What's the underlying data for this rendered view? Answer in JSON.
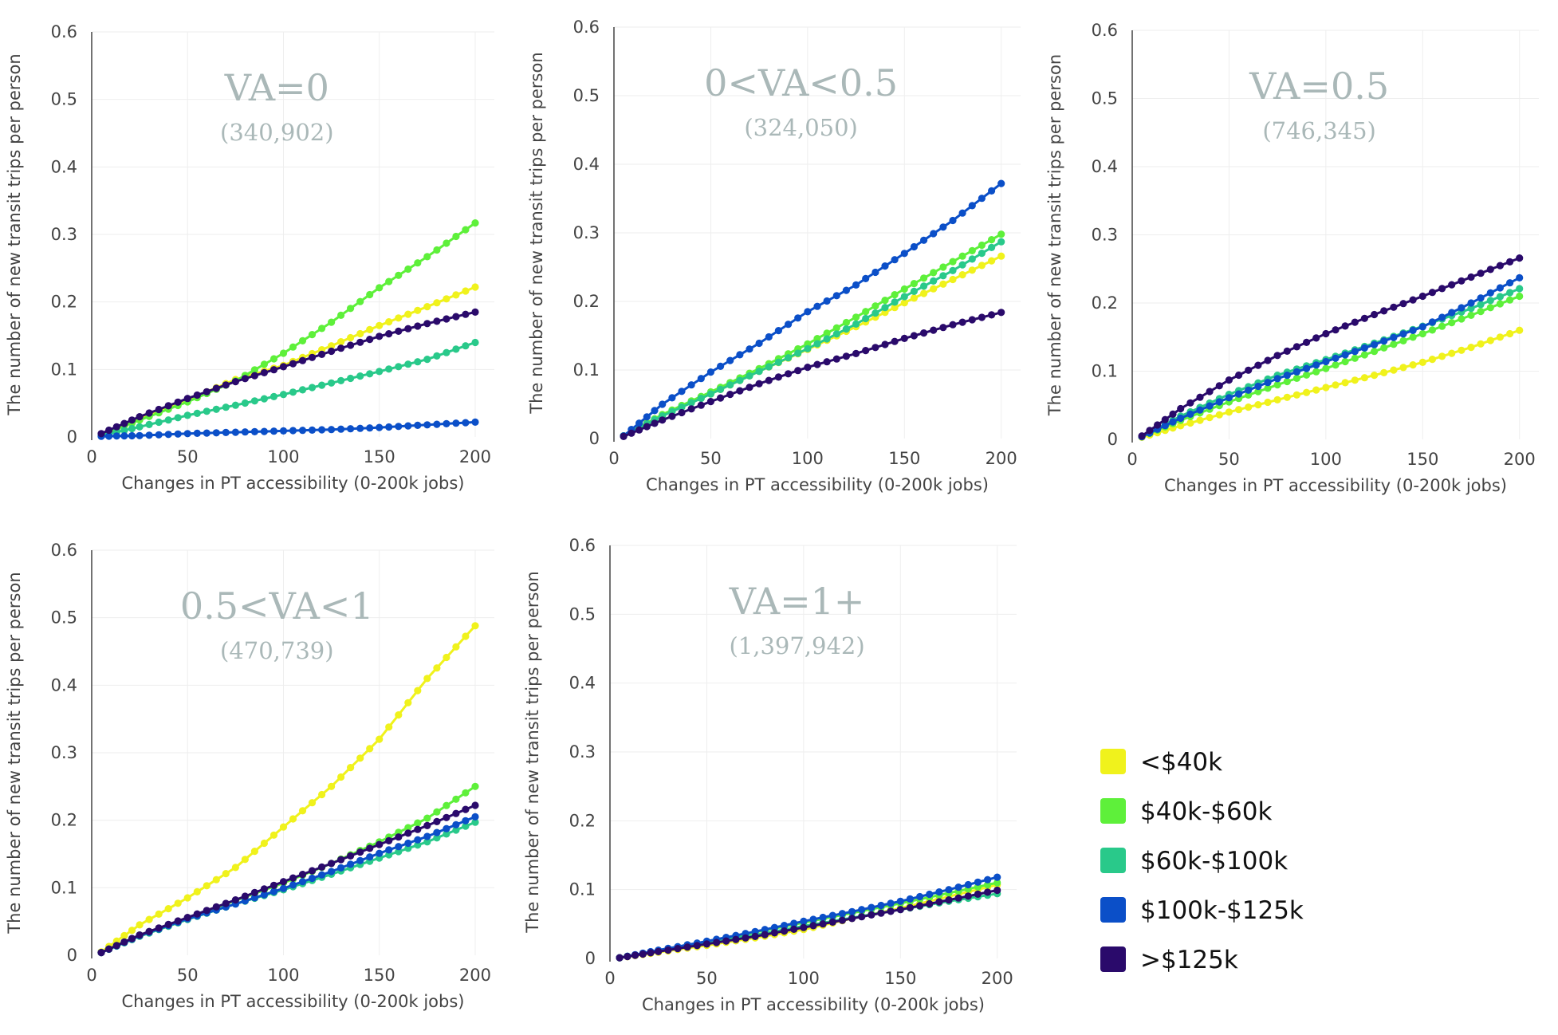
{
  "chart_data": [
    {
      "type": "line",
      "title": "VA=0",
      "subtitle": "(340,902)",
      "xlabel": "Changes in PT accessibility (0-200k jobs)",
      "ylabel": "The number of new transit trips per person",
      "xlim": [
        0,
        210
      ],
      "ylim": [
        0,
        0.6
      ],
      "xticks": [
        "0",
        "50",
        "100",
        "150",
        "200"
      ],
      "yticks": [
        "0",
        "0.1",
        "0.2",
        "0.3",
        "0.4",
        "0.5",
        "0.6"
      ],
      "x": [
        5,
        25,
        50,
        75,
        100,
        125,
        150,
        175,
        200
      ],
      "series": [
        {
          "name": "<$40k",
          "values": [
            0.003,
            0.028,
            0.055,
            0.085,
            0.106,
            0.135,
            0.165,
            0.193,
            0.222
          ]
        },
        {
          "name": "$40k-$60k",
          "values": [
            0.003,
            0.025,
            0.052,
            0.083,
            0.124,
            0.17,
            0.221,
            0.267,
            0.317
          ]
        },
        {
          "name": "$60k-$100k",
          "values": [
            0.002,
            0.015,
            0.032,
            0.047,
            0.063,
            0.08,
            0.097,
            0.115,
            0.14
          ]
        },
        {
          "name": "$100k-$125k",
          "values": [
            0.001,
            0.002,
            0.005,
            0.007,
            0.009,
            0.011,
            0.014,
            0.018,
            0.022
          ]
        },
        {
          "name": ">$125k",
          "values": [
            0.005,
            0.03,
            0.057,
            0.082,
            0.104,
            0.127,
            0.149,
            0.168,
            0.185
          ]
        }
      ]
    },
    {
      "type": "line",
      "title": "0<VA<0.5",
      "subtitle": "(324,050)",
      "xlabel": "Changes in PT accessibility (0-200k jobs)",
      "ylabel": "The number of new transit trips per person",
      "xlim": [
        0,
        210
      ],
      "ylim": [
        0,
        0.6
      ],
      "xticks": [
        "0",
        "50",
        "100",
        "150",
        "200"
      ],
      "yticks": [
        "0",
        "0.1",
        "0.2",
        "0.3",
        "0.4",
        "0.5",
        "0.6"
      ],
      "x": [
        5,
        25,
        50,
        75,
        100,
        125,
        150,
        175,
        200
      ],
      "series": [
        {
          "name": "<$40k",
          "values": [
            0.004,
            0.034,
            0.065,
            0.098,
            0.13,
            0.163,
            0.198,
            0.232,
            0.266
          ]
        },
        {
          "name": "$40k-$60k",
          "values": [
            0.004,
            0.035,
            0.068,
            0.102,
            0.138,
            0.177,
            0.218,
            0.258,
            0.298
          ]
        },
        {
          "name": "$60k-$100k",
          "values": [
            0.004,
            0.033,
            0.065,
            0.098,
            0.131,
            0.167,
            0.207,
            0.245,
            0.287
          ]
        },
        {
          "name": "$100k-$125k",
          "values": [
            0.004,
            0.05,
            0.097,
            0.139,
            0.185,
            0.224,
            0.27,
            0.318,
            0.372
          ]
        },
        {
          "name": ">$125k",
          "values": [
            0.003,
            0.027,
            0.054,
            0.08,
            0.104,
            0.124,
            0.146,
            0.166,
            0.184
          ]
        }
      ]
    },
    {
      "type": "line",
      "title": "VA=0.5",
      "subtitle": "(746,345)",
      "xlabel": "Changes in PT accessibility (0-200k jobs)",
      "ylabel": "The number of new transit trips per person",
      "xlim": [
        0,
        210
      ],
      "ylim": [
        0,
        0.6
      ],
      "xticks": [
        "0",
        "50",
        "100",
        "150",
        "200"
      ],
      "yticks": [
        "0",
        "0.1",
        "0.2",
        "0.3",
        "0.4",
        "0.5",
        "0.6"
      ],
      "x": [
        5,
        25,
        50,
        75,
        100,
        125,
        150,
        175,
        200
      ],
      "series": [
        {
          "name": "<$40k",
          "values": [
            0.003,
            0.02,
            0.04,
            0.058,
            0.076,
            0.094,
            0.113,
            0.135,
            0.16
          ]
        },
        {
          "name": "$40k-$60k",
          "values": [
            0.004,
            0.028,
            0.055,
            0.08,
            0.104,
            0.129,
            0.155,
            0.182,
            0.21
          ]
        },
        {
          "name": "$60k-$100k",
          "values": [
            0.004,
            0.034,
            0.066,
            0.094,
            0.117,
            0.141,
            0.166,
            0.192,
            0.221
          ]
        },
        {
          "name": "$100k-$125k",
          "values": [
            0.004,
            0.031,
            0.061,
            0.089,
            0.114,
            0.139,
            0.165,
            0.2,
            0.237
          ]
        },
        {
          "name": ">$125k",
          "values": [
            0.005,
            0.045,
            0.087,
            0.123,
            0.155,
            0.183,
            0.21,
            0.238,
            0.266
          ]
        }
      ]
    },
    {
      "type": "line",
      "title": "0.5<VA<1",
      "subtitle": "(470,739)",
      "xlabel": "Changes in PT accessibility (0-200k jobs)",
      "ylabel": "The number of new transit trips per person",
      "xlim": [
        0,
        210
      ],
      "ylim": [
        0,
        0.6
      ],
      "xticks": [
        "0",
        "50",
        "100",
        "150",
        "200"
      ],
      "yticks": [
        "0",
        "0.1",
        "0.2",
        "0.3",
        "0.4",
        "0.5",
        "0.6"
      ],
      "x": [
        5,
        25,
        50,
        75,
        100,
        125,
        150,
        175,
        200
      ],
      "series": [
        {
          "name": "<$40k",
          "values": [
            0.005,
            0.045,
            0.085,
            0.13,
            0.19,
            0.25,
            0.32,
            0.41,
            0.488
          ]
        },
        {
          "name": "$40k-$60k",
          "values": [
            0.004,
            0.03,
            0.055,
            0.081,
            0.107,
            0.136,
            0.168,
            0.203,
            0.25
          ]
        },
        {
          "name": "$60k-$100k",
          "values": [
            0.004,
            0.028,
            0.053,
            0.076,
            0.097,
            0.12,
            0.144,
            0.168,
            0.197
          ]
        },
        {
          "name": "$100k-$125k",
          "values": [
            0.004,
            0.029,
            0.054,
            0.076,
            0.099,
            0.124,
            0.151,
            0.176,
            0.205
          ]
        },
        {
          "name": ">$125k",
          "values": [
            0.004,
            0.03,
            0.056,
            0.082,
            0.109,
            0.136,
            0.164,
            0.192,
            0.222
          ]
        }
      ]
    },
    {
      "type": "line",
      "title": "VA=1+",
      "subtitle": "(1,397,942)",
      "xlabel": "Changes in PT accessibility (0-200k jobs)",
      "ylabel": "The number of new transit trips per person",
      "xlim": [
        0,
        210
      ],
      "ylim": [
        0,
        0.6
      ],
      "xticks": [
        "0",
        "50",
        "100",
        "150",
        "200"
      ],
      "yticks": [
        "0",
        "0.1",
        "0.2",
        "0.3",
        "0.4",
        "0.5",
        "0.6"
      ],
      "x": [
        5,
        25,
        50,
        75,
        100,
        125,
        150,
        175,
        200
      ],
      "series": [
        {
          "name": "<$40k",
          "values": [
            0.001,
            0.009,
            0.019,
            0.03,
            0.042,
            0.058,
            0.073,
            0.09,
            0.107
          ]
        },
        {
          "name": "$40k-$60k",
          "values": [
            0.001,
            0.011,
            0.024,
            0.038,
            0.052,
            0.066,
            0.08,
            0.095,
            0.11
          ]
        },
        {
          "name": "$60k-$100k",
          "values": [
            0.001,
            0.011,
            0.023,
            0.034,
            0.047,
            0.059,
            0.071,
            0.083,
            0.094
          ]
        },
        {
          "name": "$100k-$125k",
          "values": [
            0.001,
            0.012,
            0.025,
            0.039,
            0.054,
            0.068,
            0.083,
            0.1,
            0.118
          ]
        },
        {
          "name": ">$125k",
          "values": [
            0.001,
            0.01,
            0.021,
            0.032,
            0.045,
            0.058,
            0.071,
            0.085,
            0.099
          ]
        }
      ]
    }
  ],
  "legend": {
    "items": [
      {
        "label": "<$40k",
        "color": "#f0f21c"
      },
      {
        "label": "$40k-$60k",
        "color": "#5ef03a"
      },
      {
        "label": "$60k-$100k",
        "color": "#29c98a"
      },
      {
        "label": "$100k-$125k",
        "color": "#0b4fc8"
      },
      {
        "label": ">$125k",
        "color": "#2a0a6b"
      }
    ]
  }
}
